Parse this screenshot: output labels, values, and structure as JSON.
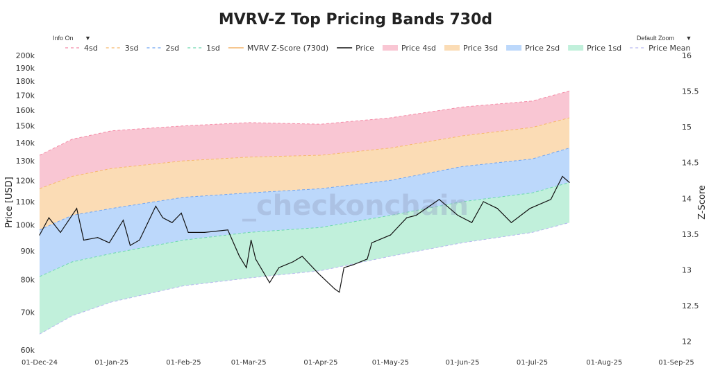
{
  "menus": {
    "info": "Info On",
    "zoom": "Default Zoom",
    "caret": "▼"
  },
  "watermark": "_checkonchain",
  "colors": {
    "price": "#111111",
    "band4": "#f9c6d3",
    "band3": "#fbdcb5",
    "band2": "#bcd8fb",
    "band1": "#c1f0db",
    "line4": "#f48aa6",
    "line3": "#f6b86b",
    "line2": "#6ea4f2",
    "line1": "#6cd8ad",
    "mean": "#b6b6f0",
    "zscore": "#f4b46a"
  },
  "chart_data": {
    "type": "area",
    "title": "MVRV-Z Top Pricing Bands 730d",
    "ylabel": "Price [USD]",
    "y2label": "Z-Score",
    "yscale": "log",
    "ylim": [
      60000,
      200000
    ],
    "y2lim": [
      11.88,
      16
    ],
    "xlim": [
      "2024-12-01",
      "2025-09-01"
    ],
    "x_ticks": [
      "01-Dec-24",
      "01-Jan-25",
      "01-Feb-25",
      "01-Mar-25",
      "01-Apr-25",
      "01-May-25",
      "01-Jun-25",
      "01-Jul-25",
      "01-Aug-25",
      "01-Sep-25"
    ],
    "x_tick_dates": [
      "2024-12-01",
      "2025-01-01",
      "2025-02-01",
      "2025-03-01",
      "2025-04-01",
      "2025-05-01",
      "2025-06-01",
      "2025-07-01",
      "2025-08-01",
      "2025-09-01"
    ],
    "y_ticks": [
      60000,
      70000,
      80000,
      90000,
      100000,
      110000,
      120000,
      130000,
      140000,
      150000,
      160000,
      170000,
      180000,
      190000,
      200000
    ],
    "y_tick_labels": [
      "60k",
      "70k",
      "80k",
      "90k",
      "100k",
      "110k",
      "120k",
      "130k",
      "140k",
      "150k",
      "160k",
      "170k",
      "180k",
      "190k",
      "200k"
    ],
    "y2_ticks": [
      12,
      12.5,
      13,
      13.5,
      14,
      14.5,
      15,
      15.5,
      16
    ],
    "y2_tick_labels": [
      "12",
      "12.5",
      "13",
      "13.5",
      "14",
      "14.5",
      "15",
      "15.5",
      "16"
    ],
    "grid": false,
    "legend_position": "top",
    "legend": [
      {
        "name": "4sd",
        "style": "dash",
        "color": "#f48aa6"
      },
      {
        "name": "3sd",
        "style": "dash",
        "color": "#f6b86b"
      },
      {
        "name": "2sd",
        "style": "dash",
        "color": "#6ea4f2"
      },
      {
        "name": "1sd",
        "style": "dash",
        "color": "#6cd8ad"
      },
      {
        "name": "MVRV Z-Score (730d)",
        "style": "line",
        "color": "#f4b46a"
      },
      {
        "name": "Price",
        "style": "line",
        "color": "#111111"
      },
      {
        "name": "Price 4sd",
        "style": "fill",
        "color": "#f9c6d3"
      },
      {
        "name": "Price 3sd",
        "style": "fill",
        "color": "#fbdcb5"
      },
      {
        "name": "Price 2sd",
        "style": "fill",
        "color": "#bcd8fb"
      },
      {
        "name": "Price 1sd",
        "style": "fill",
        "color": "#c1f0db"
      },
      {
        "name": "Price Mean",
        "style": "dash",
        "color": "#b6b6f0"
      }
    ],
    "band_dates": [
      "2024-12-01",
      "2024-12-15",
      "2025-01-01",
      "2025-02-01",
      "2025-03-01",
      "2025-04-01",
      "2025-05-01",
      "2025-06-01",
      "2025-07-01",
      "2025-07-17"
    ],
    "bands": {
      "mean": [
        64000,
        69000,
        73000,
        78000,
        80500,
        83000,
        88000,
        93000,
        97000,
        101000
      ],
      "sd1": [
        81000,
        86000,
        89000,
        94000,
        97000,
        99000,
        104000,
        110000,
        114000,
        119000
      ],
      "sd2": [
        98000,
        104000,
        107000,
        112000,
        114000,
        116000,
        120000,
        127000,
        131000,
        137000
      ],
      "sd3": [
        116000,
        122000,
        126000,
        130000,
        132000,
        133000,
        137000,
        144000,
        149000,
        155000
      ],
      "sd4": [
        133000,
        142000,
        147000,
        150000,
        152000,
        151000,
        155000,
        162000,
        166000,
        173000
      ]
    },
    "price": {
      "dates": [
        "2024-12-01",
        "2024-12-05",
        "2024-12-10",
        "2024-12-17",
        "2024-12-20",
        "2024-12-26",
        "2024-12-31",
        "2025-01-06",
        "2025-01-09",
        "2025-01-13",
        "2025-01-20",
        "2025-01-23",
        "2025-01-27",
        "2025-01-31",
        "2025-02-03",
        "2025-02-10",
        "2025-02-20",
        "2025-02-25",
        "2025-02-28",
        "2025-03-02",
        "2025-03-04",
        "2025-03-10",
        "2025-03-14",
        "2025-03-20",
        "2025-03-24",
        "2025-03-31",
        "2025-04-07",
        "2025-04-09",
        "2025-04-11",
        "2025-04-15",
        "2025-04-21",
        "2025-04-23",
        "2025-05-01",
        "2025-05-08",
        "2025-05-12",
        "2025-05-22",
        "2025-05-30",
        "2025-06-05",
        "2025-06-10",
        "2025-06-16",
        "2025-06-22",
        "2025-06-30",
        "2025-07-09",
        "2025-07-14",
        "2025-07-17"
      ],
      "values": [
        96000,
        103000,
        97000,
        107000,
        94000,
        95000,
        93000,
        102000,
        92000,
        94000,
        108000,
        103000,
        101000,
        105000,
        97000,
        97000,
        98000,
        88000,
        84000,
        94000,
        87000,
        79000,
        84000,
        86000,
        88000,
        82000,
        77000,
        76000,
        84000,
        85000,
        87000,
        93000,
        96000,
        103000,
        104000,
        111000,
        104000,
        101000,
        110000,
        107000,
        101000,
        107000,
        111000,
        122000,
        119000
      ]
    }
  }
}
